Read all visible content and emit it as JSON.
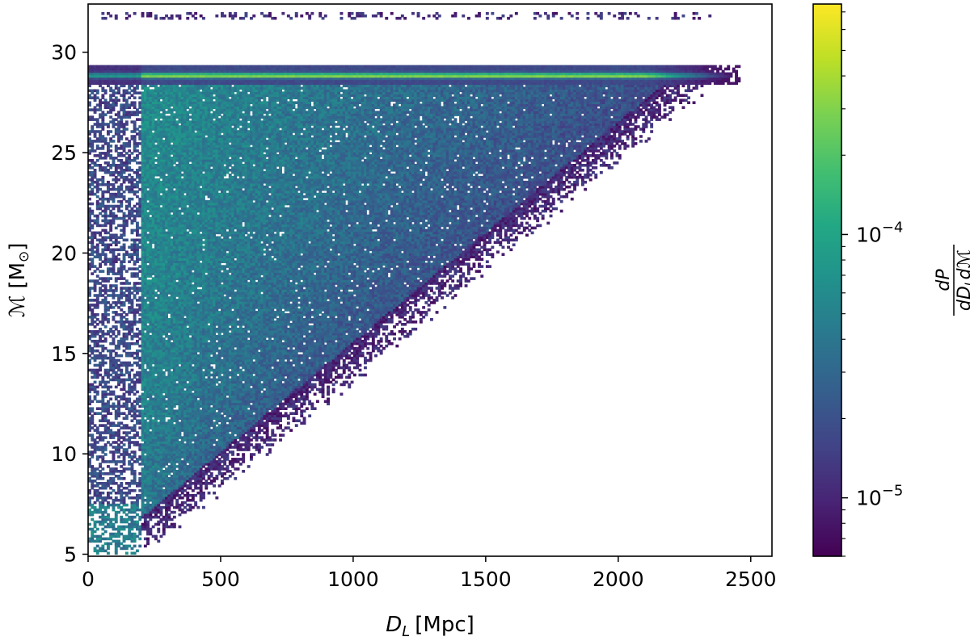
{
  "chart_data": {
    "type": "heatmap",
    "title": "",
    "xlabel_main": "D",
    "xlabel_sub": "L",
    "xlabel_unit": "[Mpc]",
    "ylabel_main": "ℳ",
    "ylabel_unit": "[M",
    "ylabel_sub": "⊙",
    "ylabel_close": "]",
    "xlim": [
      0,
      2580
    ],
    "ylim": [
      4.9,
      32.4
    ],
    "xticks": [
      0,
      500,
      1000,
      1500,
      2000,
      2500
    ],
    "xtick_labels": [
      "0",
      "500",
      "1000",
      "1500",
      "2000",
      "2500"
    ],
    "yticks": [
      5,
      10,
      15,
      20,
      25,
      30
    ],
    "ytick_labels": [
      "5",
      "10",
      "15",
      "20",
      "25",
      "30"
    ],
    "grid": false,
    "colormap": "viridis",
    "colorbar": {
      "scale": "log",
      "vmin": 6e-06,
      "vmax": 0.00075,
      "major_ticks": [
        {
          "value": 0.0001,
          "base": "10",
          "exponent": "−4"
        },
        {
          "value": 1e-05,
          "base": "10",
          "exponent": "−5"
        }
      ],
      "label_num": "dP",
      "label_den_d1": "dD",
      "label_den_sub": "L",
      "label_den_d2": "d",
      "label_den_M": "ℳ"
    },
    "features": {
      "dense_band_chirp_mass": 28.8,
      "band_x_max": 2450,
      "upper_sparse_row_chirp_mass": [
        31.6,
        31.9
      ],
      "low_density_strip_x": [
        0,
        200
      ],
      "triangle_edge": [
        [
          200,
          5.5
        ],
        [
          2300,
          28.5
        ]
      ],
      "min_chirp_mass": 5.0
    }
  }
}
